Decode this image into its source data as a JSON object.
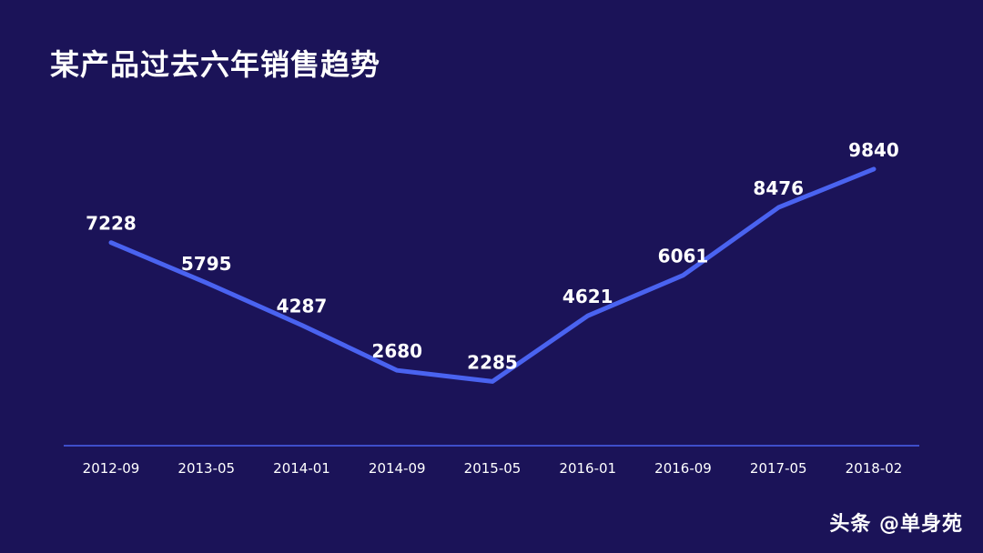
{
  "chart_data": {
    "type": "line",
    "title": "某产品过去六年销售趋势",
    "categories": [
      "2012-09",
      "2013-05",
      "2014-01",
      "2014-09",
      "2015-05",
      "2016-01",
      "2016-09",
      "2017-05",
      "2018-02"
    ],
    "values": [
      7228,
      5795,
      4287,
      2680,
      2285,
      4621,
      6061,
      8476,
      9840
    ],
    "xlabel": "",
    "ylabel": "",
    "ylim": [
      0,
      12600
    ],
    "grid": false,
    "data_labels": true,
    "colors": {
      "background": "#1b1358",
      "line": "#4a63f0",
      "axis": "#4a63f0",
      "text": "#ffffff"
    }
  },
  "watermark": "头条 @单身苑"
}
